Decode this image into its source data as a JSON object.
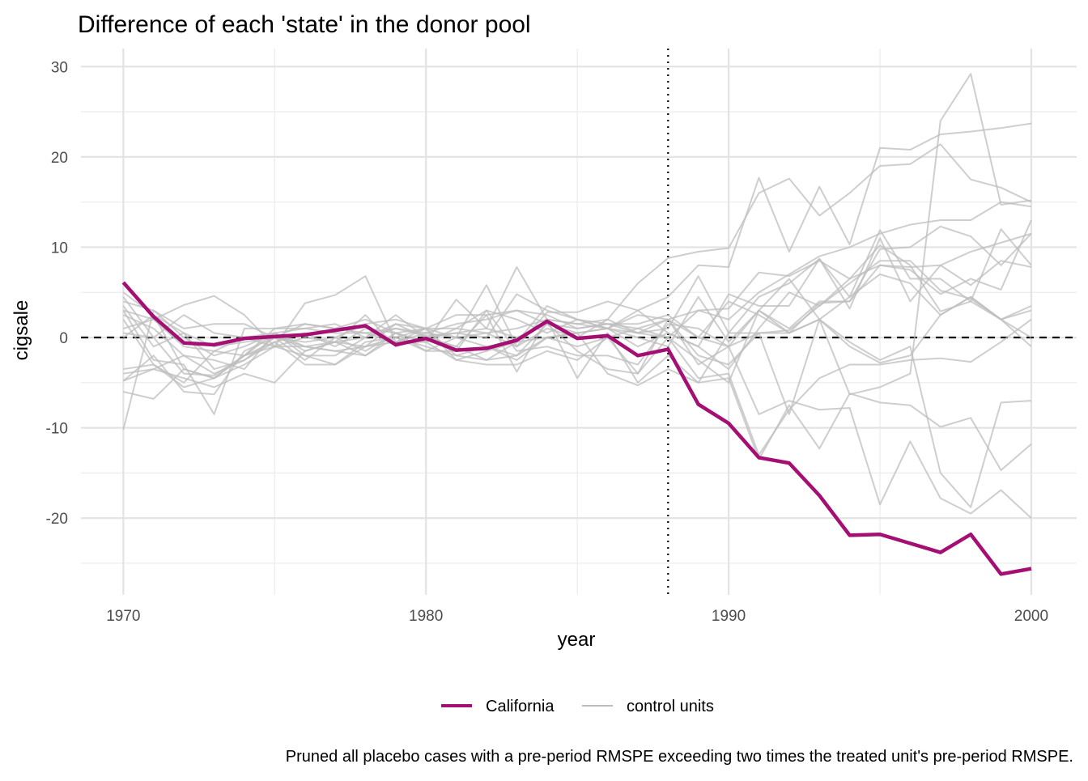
{
  "chart_data": {
    "type": "line",
    "title": "Difference of each 'state' in the donor pool",
    "xlabel": "year",
    "ylabel": "cigsale",
    "caption": "Pruned all placebo cases with a pre-period RMSPE exceeding two times the treated unit's pre-period RMSPE.",
    "x": [
      1970,
      1971,
      1972,
      1973,
      1974,
      1975,
      1976,
      1977,
      1978,
      1979,
      1980,
      1981,
      1982,
      1983,
      1984,
      1985,
      1986,
      1987,
      1988,
      1989,
      1990,
      1991,
      1992,
      1993,
      1994,
      1995,
      1996,
      1997,
      1998,
      1999,
      2000
    ],
    "xlim": [
      1968.6,
      2001.5
    ],
    "ylim": [
      -28.5,
      32
    ],
    "x_ticks": [
      1970,
      1980,
      1990,
      2000
    ],
    "x_tick_labels": [
      "1970",
      "1980",
      "1990",
      "2000"
    ],
    "y_ticks": [
      -20,
      -10,
      0,
      10,
      20,
      30
    ],
    "y_tick_labels": [
      "-20",
      "-10",
      "0",
      "10",
      "20",
      "30"
    ],
    "x_minor_ticks": [
      1975,
      1985,
      1995
    ],
    "y_minor_ticks": [
      -25,
      -15,
      -5,
      5,
      15,
      25
    ],
    "grid": true,
    "treatment_year": 1988,
    "reference_line_y": 0,
    "legend_position": "bottom",
    "legend": [
      {
        "label": "California",
        "color": "#A50F73"
      },
      {
        "label": "control units",
        "color": "#BDBDBD"
      }
    ],
    "series": [
      {
        "name": "California",
        "role": "treated",
        "color": "#A50F73",
        "values": [
          6.1,
          2.3,
          -0.6,
          -0.8,
          -0.1,
          0.1,
          0.3,
          0.8,
          1.3,
          -0.8,
          -0.1,
          -1.4,
          -1.2,
          -0.3,
          1.8,
          -0.1,
          0.2,
          -2.0,
          -1.3,
          -7.4,
          -9.5,
          -13.3,
          -13.9,
          -17.5,
          -21.9,
          -21.8,
          -22.8,
          -23.8,
          -21.8,
          -26.2,
          -25.6
        ]
      },
      {
        "role": "control",
        "values": [
          5.0,
          2.5,
          0.5,
          -1.0,
          -0.5,
          0.0,
          1.5,
          1.0,
          0.5,
          1.0,
          0.2,
          0.5,
          1.0,
          0.0,
          1.5,
          1.0,
          1.5,
          0.5,
          2.0,
          3.0,
          2.0,
          5.0,
          7.0,
          9.0,
          10.0,
          11.5,
          12.5,
          13.0,
          13.0,
          15.0,
          14.5
        ]
      },
      {
        "role": "control",
        "values": [
          -4.8,
          -3.5,
          -2.0,
          -4.0,
          -2.5,
          -0.5,
          0.5,
          -1.0,
          1.0,
          0.5,
          -0.5,
          1.0,
          0.5,
          -1.0,
          1.0,
          0.0,
          2.0,
          6.0,
          8.8,
          9.5,
          9.9,
          16.0,
          17.6,
          13.5,
          16.0,
          19.0,
          19.2,
          21.4,
          17.5,
          16.6,
          15.0
        ]
      },
      {
        "role": "control",
        "values": [
          4.0,
          3.0,
          1.0,
          1.5,
          1.5,
          0.0,
          -0.5,
          0.0,
          1.5,
          2.0,
          1.0,
          0.0,
          0.5,
          1.0,
          2.0,
          1.5,
          1.0,
          3.0,
          4.5,
          8.0,
          7.8,
          17.7,
          9.5,
          16.7,
          10.3,
          21.0,
          20.8,
          22.5,
          22.8,
          23.2,
          23.7
        ]
      },
      {
        "role": "control",
        "values": [
          2.0,
          -3.0,
          -5.5,
          -4.5,
          -2.0,
          0.5,
          -1.0,
          -0.5,
          0.0,
          1.0,
          0.5,
          1.5,
          2.0,
          3.0,
          1.5,
          0.5,
          1.0,
          0.0,
          -1.0,
          4.5,
          -0.5,
          3.0,
          6.5,
          2.0,
          -6.3,
          -5.5,
          -4.0,
          24.0,
          29.2,
          14.7,
          15.2
        ]
      },
      {
        "role": "control",
        "values": [
          -6.0,
          -6.8,
          -3.5,
          -4.5,
          -3.0,
          -1.0,
          -2.0,
          -3.0,
          -1.0,
          1.5,
          0.0,
          -1.0,
          -2.5,
          -0.5,
          3.5,
          2.0,
          1.0,
          0.5,
          1.0,
          6.8,
          0.5,
          4.5,
          6.0,
          8.7,
          4.5,
          11.9,
          6.5,
          6.5,
          4.0,
          12.0,
          8.0
        ]
      },
      {
        "role": "control",
        "values": [
          -10.2,
          3.0,
          0.0,
          -2.0,
          -1.0,
          0.5,
          1.0,
          0.5,
          0.5,
          -0.5,
          0.5,
          0.0,
          -1.0,
          -2.0,
          0.0,
          -1.0,
          0.0,
          1.0,
          2.0,
          0.0,
          4.0,
          2.5,
          0.5,
          3.8,
          4.0,
          9.8,
          10.0,
          12.3,
          11.2,
          8.0,
          11.5
        ]
      },
      {
        "role": "control",
        "values": [
          4.5,
          0.0,
          -4.0,
          -4.2,
          -2.0,
          -0.5,
          -3.0,
          -3.0,
          -0.5,
          0.0,
          1.0,
          -2.0,
          -1.0,
          -2.5,
          0.0,
          0.5,
          1.0,
          -1.0,
          0.5,
          -1.0,
          4.8,
          3.5,
          3.5,
          8.7,
          3.2,
          11.0,
          4.0,
          8.0,
          5.8,
          8.5,
          7.8
        ]
      },
      {
        "role": "control",
        "values": [
          1.0,
          2.0,
          3.6,
          4.6,
          2.5,
          -1.0,
          3.8,
          4.7,
          6.8,
          -0.5,
          -0.5,
          4.2,
          1.0,
          7.8,
          2.0,
          1.5,
          2.0,
          0.5,
          0.0,
          3.0,
          3.2,
          7.2,
          6.8,
          8.5,
          6.5,
          8.0,
          7.8,
          8.0,
          9.5,
          10.5,
          11.5
        ]
      },
      {
        "role": "control",
        "values": [
          -4.8,
          -2.0,
          -6.0,
          -6.3,
          -1.5,
          0.0,
          -2.5,
          0.0,
          -1.5,
          0.5,
          -1.5,
          0.0,
          5.8,
          -1.0,
          2.8,
          2.8,
          4.0,
          3.0,
          0.5,
          -1.0,
          -3.5,
          1.0,
          5.0,
          3.5,
          6.5,
          10.2,
          8.0,
          2.9,
          4.0,
          2.0,
          3.0
        ]
      },
      {
        "role": "control",
        "values": [
          3.0,
          -2.5,
          -3.0,
          -8.5,
          1.0,
          1.0,
          1.5,
          1.0,
          2.0,
          0.5,
          1.0,
          2.5,
          2.5,
          3.0,
          2.5,
          1.0,
          1.5,
          1.5,
          2.5,
          0.0,
          -1.0,
          3.0,
          1.0,
          4.0,
          4.0,
          8.0,
          7.5,
          4.8,
          6.5,
          5.3,
          13.0
        ]
      },
      {
        "role": "control",
        "values": [
          3.0,
          2.0,
          -1.0,
          -1.5,
          0.0,
          0.5,
          -2.0,
          -2.0,
          0.0,
          2.5,
          0.0,
          0.5,
          0.0,
          4.8,
          3.0,
          2.0,
          1.0,
          2.5,
          2.0,
          -2.0,
          -3.0,
          0.5,
          0.8,
          3.5,
          6.0,
          8.5,
          8.5,
          5.2,
          4.3,
          2.0,
          0.0
        ]
      },
      {
        "role": "control",
        "values": [
          -3.5,
          -3.0,
          -5.0,
          -1.5,
          -2.0,
          1.0,
          1.0,
          1.5,
          0.0,
          1.5,
          1.0,
          1.0,
          3.0,
          2.0,
          0.5,
          2.0,
          1.5,
          1.0,
          0.0,
          -2.5,
          -5.0,
          3.0,
          0.5,
          2.0,
          4.5,
          7.0,
          6.0,
          2.5,
          4.5,
          2.0,
          3.5
        ]
      },
      {
        "role": "control",
        "values": [
          -4.0,
          -3.5,
          -4.5,
          -5.5,
          -4.0,
          -5.0,
          -1.5,
          -0.5,
          -2.0,
          0.0,
          -1.5,
          -1.5,
          3.0,
          -1.5,
          -1.0,
          -2.0,
          -2.0,
          -3.0,
          1.5,
          1.0,
          -1.0,
          0.5,
          0.5,
          2.0,
          -1.0,
          -2.8,
          -2.0,
          2.5,
          4.5,
          2.0,
          -1.0
        ]
      },
      {
        "role": "control",
        "values": [
          3.5,
          -1.0,
          0.5,
          -3.5,
          -2.5,
          0.0,
          -1.0,
          -1.5,
          -2.0,
          0.5,
          -0.5,
          -2.5,
          -3.0,
          -3.0,
          -1.5,
          -2.5,
          0.0,
          -4.0,
          2.0,
          -3.0,
          -1.0,
          -8.5,
          -7.0,
          -8.0,
          -7.8,
          -18.5,
          -11.5,
          -17.8,
          -19.5,
          -16.9,
          -20.0
        ]
      },
      {
        "role": "control",
        "values": [
          2.5,
          1.0,
          -2.0,
          -2.5,
          -3.5,
          0.5,
          -1.5,
          -0.5,
          2.5,
          -1.0,
          0.0,
          -1.0,
          2.5,
          -3.8,
          2.0,
          -4.5,
          0.5,
          -5.0,
          -2.0,
          -5.0,
          -4.5,
          -13.5,
          -7.5,
          -12.3,
          -6.2,
          -7.2,
          -7.5,
          -9.9,
          -8.9,
          -14.7,
          -11.8
        ]
      },
      {
        "role": "control",
        "values": [
          0.0,
          2.5,
          -3.5,
          -4.5,
          -2.0,
          -1.0,
          -1.0,
          -1.5,
          -1.0,
          0.0,
          -1.0,
          -2.0,
          -2.5,
          -2.0,
          1.5,
          -1.5,
          -3.5,
          -4.0,
          0.0,
          -4.5,
          -4.0,
          -13.0,
          -8.0,
          -4.5,
          -3.0,
          -3.0,
          -2.5,
          -2.3,
          -2.7,
          -0.5,
          2.0
        ]
      },
      {
        "role": "control",
        "values": [
          0.5,
          0.0,
          2.5,
          0.5,
          0.0,
          -1.0,
          0.0,
          -0.5,
          -1.0,
          -0.5,
          1.0,
          -2.5,
          -1.5,
          -0.5,
          0.0,
          0.5,
          -4.0,
          -5.3,
          -3.5,
          -5.0,
          0.5,
          0.5,
          -8.5,
          2.0,
          -0.5,
          -2.5,
          -1.0,
          -15.0,
          -18.8,
          -7.2,
          -7.0
        ]
      }
    ]
  }
}
